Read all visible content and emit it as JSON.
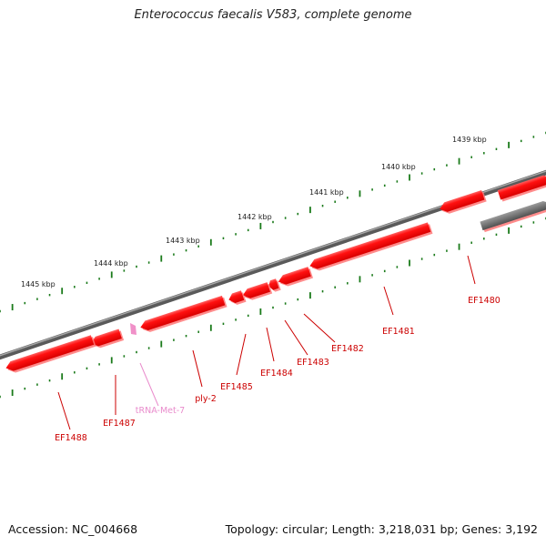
{
  "title": "Enterococcus faecalis V583, complete genome",
  "footer": {
    "accession": "Accession: NC_004668",
    "summary": "Topology: circular; Length: 3,218,031 bp; Genes: 3,192"
  },
  "colors": {
    "gene": "#ee1111",
    "gene_edge": "#ff7777",
    "trna": "#f090c8",
    "trna_label": "#e98ccc",
    "label": "#cc0000",
    "backbone": "#707070",
    "scale_tick": "#1a7a1a"
  },
  "kbp_labels": [
    "1439 kbp",
    "1440 kbp",
    "1441 kbp",
    "1442 kbp",
    "1443 kbp",
    "1444 kbp",
    "1445 kbp"
  ],
  "genes": [
    {
      "id": "EF1480",
      "label": "EF1480"
    },
    {
      "id": "EF1481",
      "label": "EF1481"
    },
    {
      "id": "EF1482",
      "label": "EF1482"
    },
    {
      "id": "EF1483",
      "label": "EF1483"
    },
    {
      "id": "EF1484",
      "label": "EF1484"
    },
    {
      "id": "EF1485",
      "label": "EF1485"
    },
    {
      "id": "ply-2",
      "label": "ply-2"
    },
    {
      "id": "tRNA-Met-7",
      "label": "tRNA-Met-7"
    },
    {
      "id": "EF1487",
      "label": "EF1487"
    },
    {
      "id": "EF1488",
      "label": "EF1488"
    }
  ]
}
